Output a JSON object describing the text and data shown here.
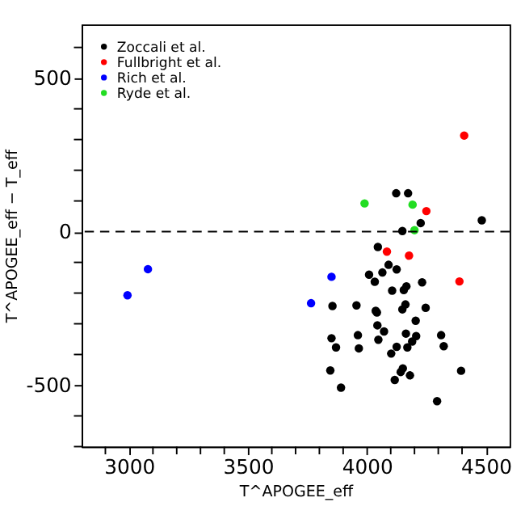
{
  "chart_data": {
    "type": "scatter",
    "xlabel": "T^APOGEE_eff",
    "ylabel": "T^APOGEE_eff − T_eff",
    "xlim": [
      2800,
      4600
    ],
    "ylim": [
      -700,
      675
    ],
    "xticks": [
      {
        "value": 2900,
        "label": null
      },
      3000,
      {
        "value": 3100,
        "label": null
      },
      {
        "value": 3200,
        "label": null
      },
      {
        "value": 3300,
        "label": null
      },
      {
        "value": 3400,
        "label": null
      },
      3500,
      {
        "value": 3600,
        "label": null
      },
      {
        "value": 3700,
        "label": null
      },
      {
        "value": 3800,
        "label": null
      },
      {
        "value": 3900,
        "label": null
      },
      4000,
      {
        "value": 4100,
        "label": null
      },
      {
        "value": 4200,
        "label": null
      },
      {
        "value": 4300,
        "label": null
      },
      {
        "value": 4400,
        "label": null
      },
      4500
    ],
    "yticks": [
      {
        "value": -700,
        "label": null
      },
      {
        "value": -600,
        "label": null
      },
      -500,
      {
        "value": -400,
        "label": null
      },
      {
        "value": -300,
        "label": null
      },
      {
        "value": -200,
        "label": null
      },
      {
        "value": -100,
        "label": null
      },
      0,
      {
        "value": 100,
        "label": null
      },
      {
        "value": 200,
        "label": null
      },
      {
        "value": 300,
        "label": null
      },
      {
        "value": 400,
        "label": null
      },
      500,
      {
        "value": 600,
        "label": null
      }
    ],
    "marker": "circle",
    "legend": "top left",
    "grid": false,
    "ref_lines": [
      {
        "axis": "y",
        "value": 0,
        "line_style": "dashed",
        "color": "#000000"
      }
    ],
    "series": [
      {
        "name": "Zoccali et al.",
        "color": "#000000",
        "x": [
          4123,
          4173,
          4226,
          4483,
          4149,
          4046,
          4091,
          4125,
          4065,
          4009,
          4033,
          4232,
          4166,
          4155,
          4106,
          3855,
          3956,
          4037,
          4042,
          4162,
          4149,
          4247,
          4205,
          4044,
          4072,
          3962,
          3851,
          4164,
          4207,
          4190,
          4048,
          3870,
          3966,
          4125,
          4170,
          4312,
          4323,
          4102,
          3846,
          4151,
          4142,
          4181,
          4117,
          4396,
          3891,
          4295
        ],
        "values": [
          125,
          125,
          28,
          37,
          2,
          -50,
          -108,
          -123,
          -133,
          -140,
          -163,
          -165,
          -178,
          -190,
          -192,
          -242,
          -240,
          -258,
          -263,
          -237,
          -253,
          -248,
          -290,
          -305,
          -325,
          -337,
          -347,
          -332,
          -340,
          -358,
          -352,
          -377,
          -380,
          -375,
          -377,
          -337,
          -373,
          -397,
          -452,
          -445,
          -457,
          -468,
          -483,
          -453,
          -508,
          -552
        ]
      },
      {
        "name": "Fullbright et al.",
        "color": "#ff0000",
        "x": [
          4409,
          4250,
          4084,
          4177,
          4389
        ],
        "values": [
          313,
          67,
          -65,
          -78,
          -162
        ]
      },
      {
        "name": "Rich et al.",
        "color": "#0000ff",
        "x": [
          3851,
          3765,
          3079,
          2993
        ],
        "values": [
          -147,
          -233,
          -122,
          -207
        ]
      },
      {
        "name": "Ryde et al.",
        "color": "#22dd22",
        "x": [
          3990,
          4192,
          4200
        ],
        "values": [
          92,
          88,
          5
        ]
      }
    ]
  }
}
